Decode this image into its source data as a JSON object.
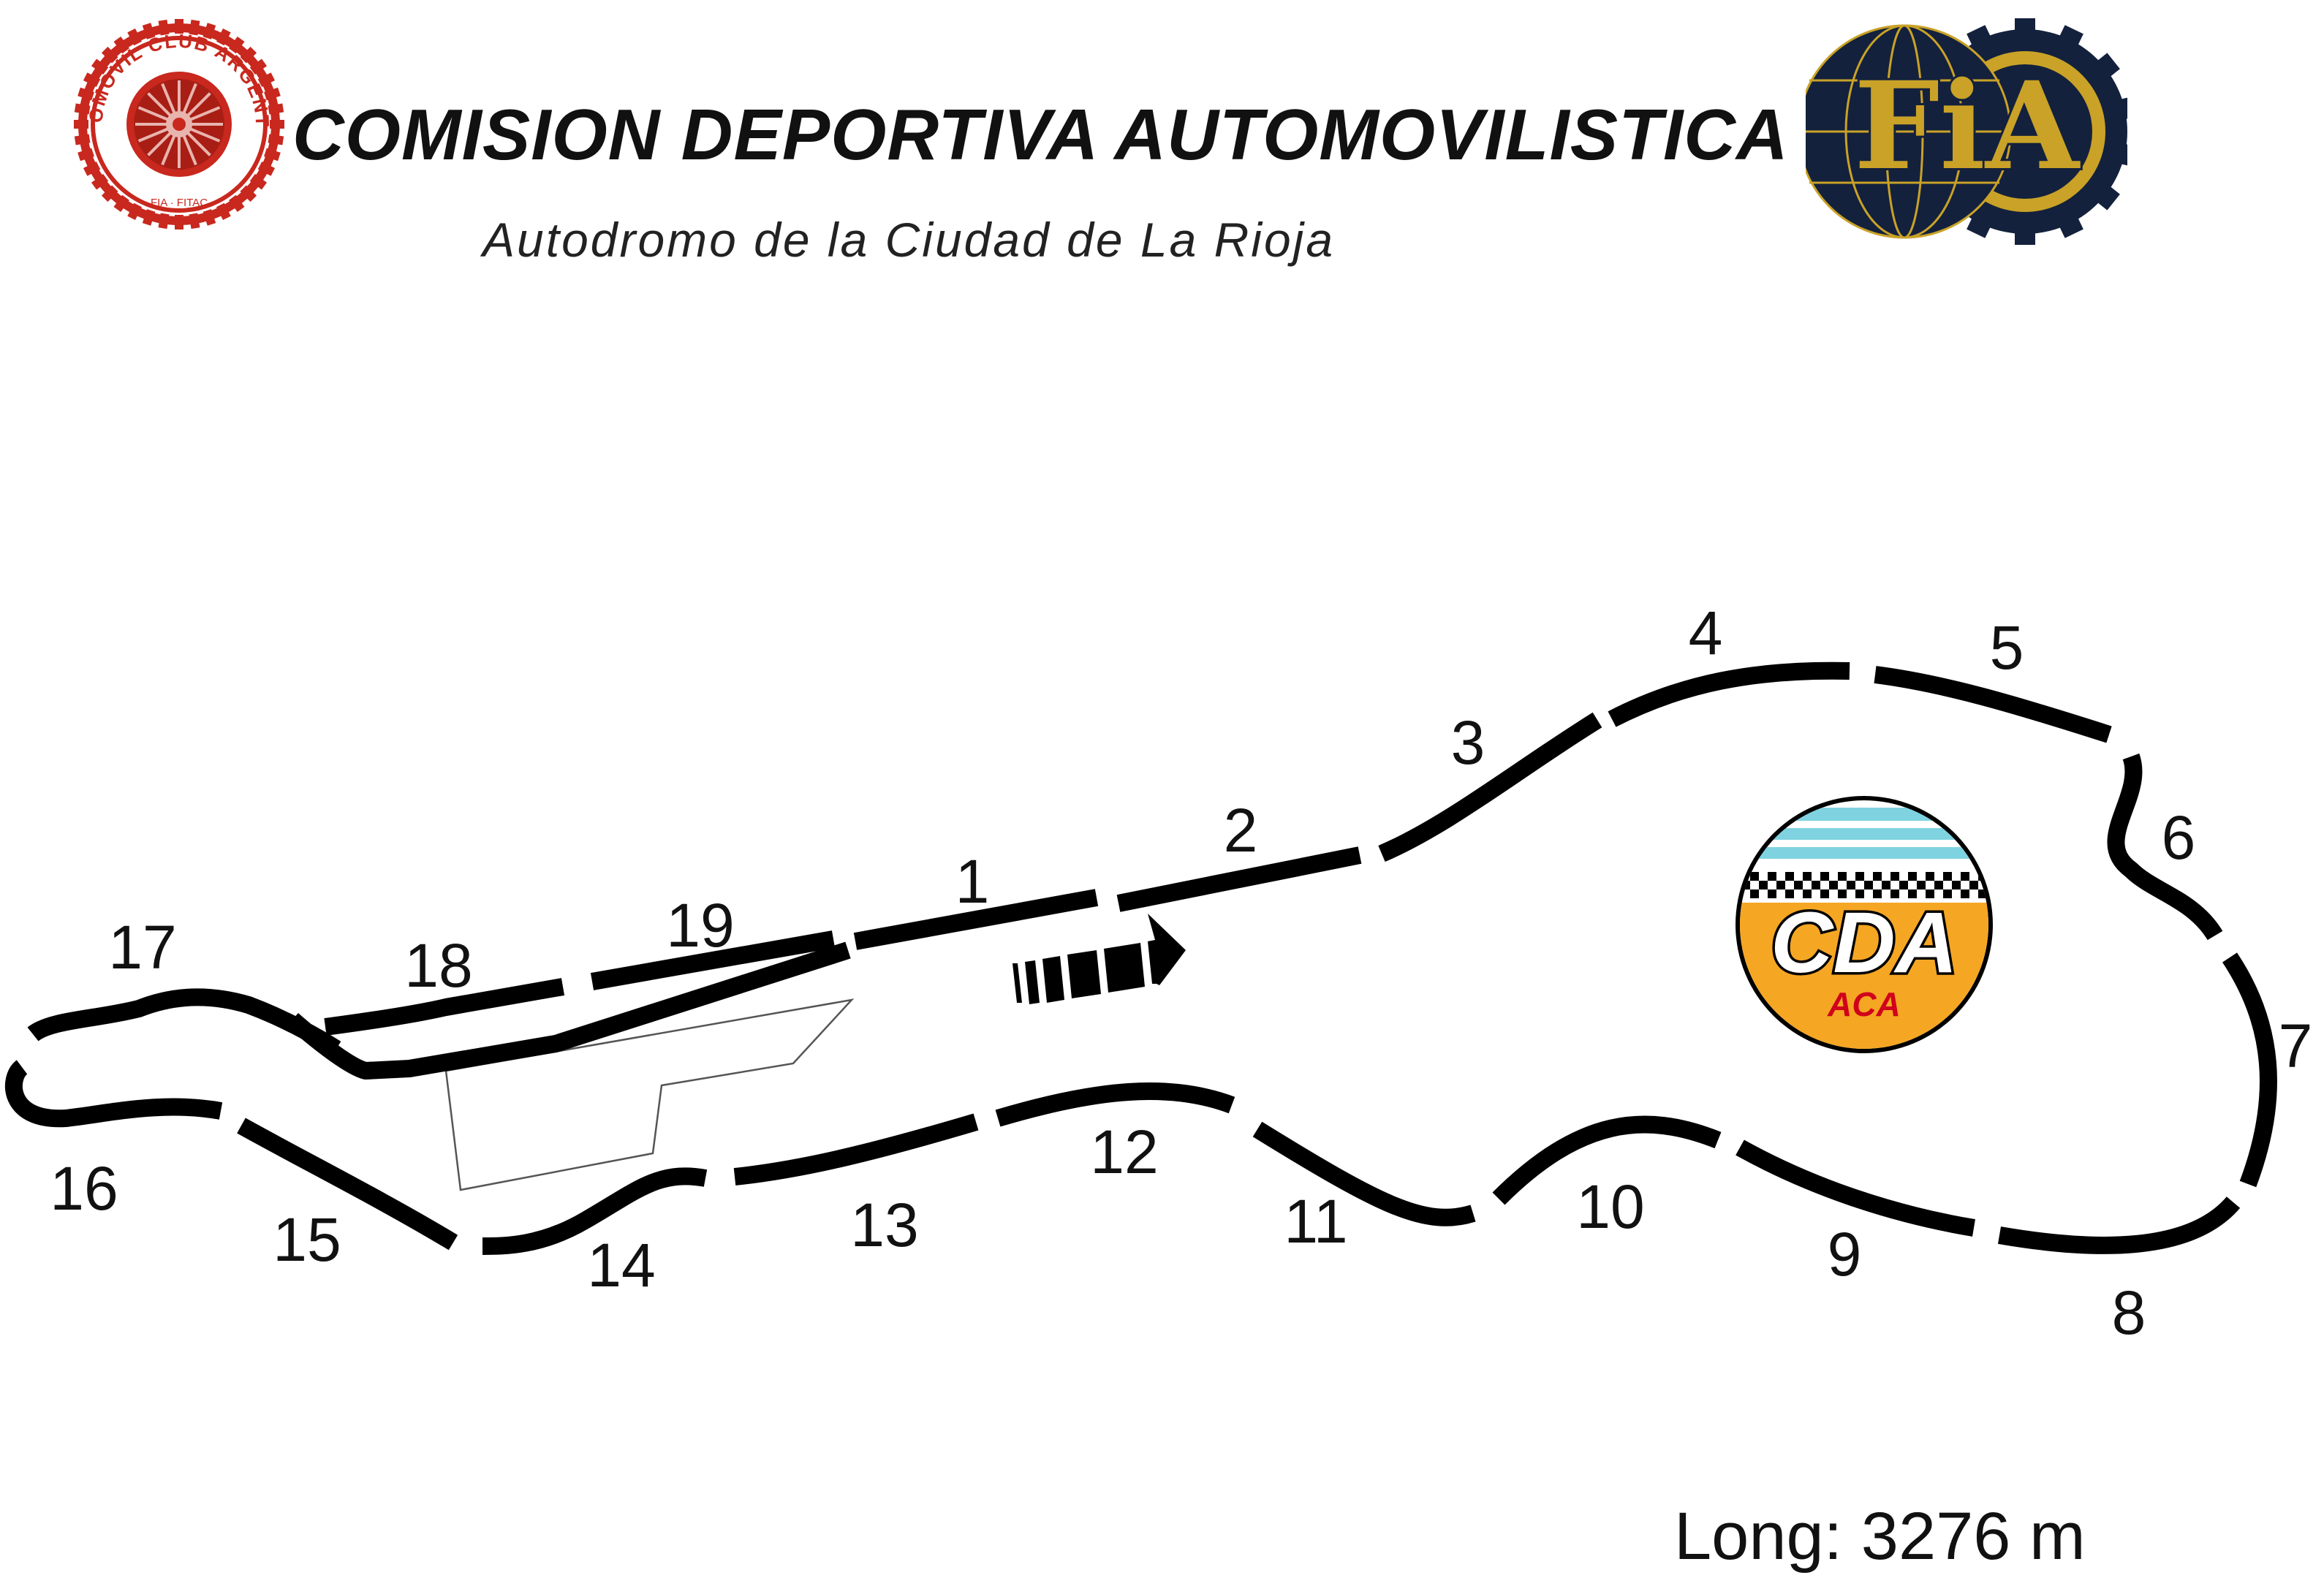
{
  "header": {
    "title": "COMISION DEPORTIVA AUTOMOVILISTICA",
    "subtitle": "Autodromo de la Ciudad de La Rioja"
  },
  "logos": {
    "aca": {
      "ring_text": "AUTOMOVIL CLUB ARGENTINO",
      "bottom_text": "FIA · FITAC"
    },
    "fia": {
      "text": "FiA"
    },
    "cda": {
      "text": "CDA",
      "sub_text": "ACA"
    }
  },
  "turns": [
    {
      "id": "1",
      "label": "1"
    },
    {
      "id": "2",
      "label": "2"
    },
    {
      "id": "3",
      "label": "3"
    },
    {
      "id": "4",
      "label": "4"
    },
    {
      "id": "5",
      "label": "5"
    },
    {
      "id": "6",
      "label": "6"
    },
    {
      "id": "7",
      "label": "7"
    },
    {
      "id": "8",
      "label": "8"
    },
    {
      "id": "9",
      "label": "9"
    },
    {
      "id": "10",
      "label": "10"
    },
    {
      "id": "11",
      "label": "11"
    },
    {
      "id": "12",
      "label": "12"
    },
    {
      "id": "13",
      "label": "13"
    },
    {
      "id": "14",
      "label": "14"
    },
    {
      "id": "15",
      "label": "15"
    },
    {
      "id": "16",
      "label": "16"
    },
    {
      "id": "17",
      "label": "17"
    },
    {
      "id": "18",
      "label": "18"
    },
    {
      "id": "19",
      "label": "19"
    }
  ],
  "footer": {
    "length_label": "Long: 3276 m"
  },
  "colors": {
    "track": "#000000",
    "aca_red": "#c8281e",
    "fia_navy": "#14213d",
    "fia_gold": "#c9a227",
    "cda_orange": "#f5a623",
    "cda_sky": "#7fd3e0"
  }
}
